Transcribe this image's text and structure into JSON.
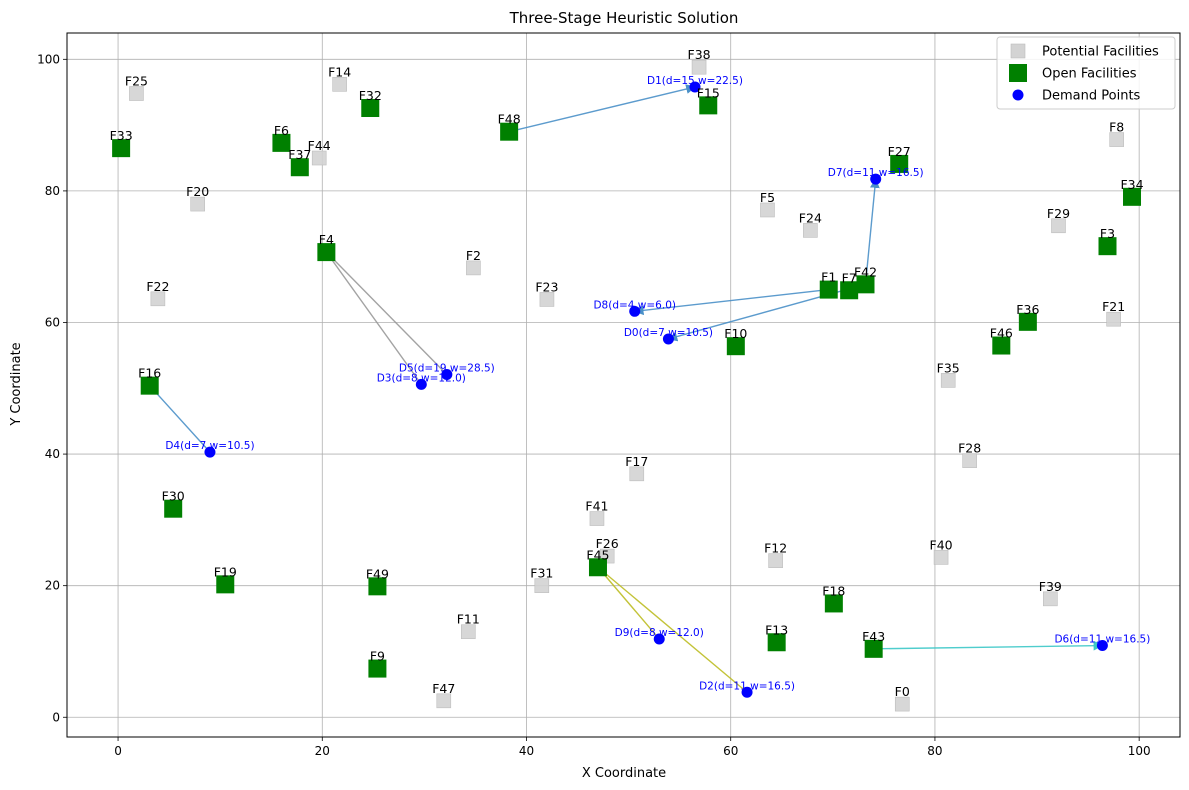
{
  "chart_data": {
    "type": "scatter",
    "title": "Three-Stage Heuristic Solution",
    "xlabel": "X Coordinate",
    "ylabel": "Y Coordinate",
    "xlim": [
      -5,
      104
    ],
    "ylim": [
      -3,
      104
    ],
    "xticks": [
      0,
      20,
      40,
      60,
      80,
      100
    ],
    "yticks": [
      0,
      20,
      40,
      60,
      80,
      100
    ],
    "grid": true,
    "legend_position": "top-right",
    "legend": [
      {
        "label": "Potential Facilities",
        "marker": "square-gray"
      },
      {
        "label": "Open Facilities",
        "marker": "square-green"
      },
      {
        "label": "Demand Points",
        "marker": "circle-blue"
      }
    ],
    "colors": {
      "potential": "#d3d3d3",
      "open": "#008000",
      "demand": "#0000ff",
      "demand_label": "#0000ff"
    },
    "potential_facilities": [
      {
        "label": "F0",
        "x": 76.8,
        "y": 2
      },
      {
        "label": "F2",
        "x": 34.8,
        "y": 68.3
      },
      {
        "label": "F5",
        "x": 63.6,
        "y": 77.1
      },
      {
        "label": "F8",
        "x": 97.8,
        "y": 87.8
      },
      {
        "label": "F11",
        "x": 34.3,
        "y": 13
      },
      {
        "label": "F12",
        "x": 64.4,
        "y": 23.8
      },
      {
        "label": "F14",
        "x": 21.7,
        "y": 96.2
      },
      {
        "label": "F17",
        "x": 50.8,
        "y": 37
      },
      {
        "label": "F20",
        "x": 7.8,
        "y": 78
      },
      {
        "label": "F21",
        "x": 97.5,
        "y": 60.5
      },
      {
        "label": "F22",
        "x": 3.9,
        "y": 63.6
      },
      {
        "label": "F23",
        "x": 42,
        "y": 63.5
      },
      {
        "label": "F24",
        "x": 67.8,
        "y": 74
      },
      {
        "label": "F25",
        "x": 1.8,
        "y": 94.8
      },
      {
        "label": "F26",
        "x": 47.9,
        "y": 24.5
      },
      {
        "label": "F28",
        "x": 83.4,
        "y": 39
      },
      {
        "label": "F29",
        "x": 92.1,
        "y": 74.7
      },
      {
        "label": "F31",
        "x": 41.5,
        "y": 20
      },
      {
        "label": "F35",
        "x": 81.3,
        "y": 51.2
      },
      {
        "label": "F38",
        "x": 56.9,
        "y": 98.8
      },
      {
        "label": "F39",
        "x": 91.3,
        "y": 18
      },
      {
        "label": "F40",
        "x": 80.6,
        "y": 24.3
      },
      {
        "label": "F41",
        "x": 46.9,
        "y": 30.2
      },
      {
        "label": "F44",
        "x": 19.7,
        "y": 85
      },
      {
        "label": "F47",
        "x": 31.9,
        "y": 2.5
      }
    ],
    "open_facilities": [
      {
        "label": "F1",
        "x": 69.6,
        "y": 65
      },
      {
        "label": "F3",
        "x": 96.9,
        "y": 71.6
      },
      {
        "label": "F4",
        "x": 20.4,
        "y": 70.7
      },
      {
        "label": "F6",
        "x": 16,
        "y": 87.3
      },
      {
        "label": "F7",
        "x": 71.6,
        "y": 64.9
      },
      {
        "label": "F9",
        "x": 25.4,
        "y": 7.4
      },
      {
        "label": "F10",
        "x": 60.5,
        "y": 56.4
      },
      {
        "label": "F13",
        "x": 64.5,
        "y": 11.4
      },
      {
        "label": "F15",
        "x": 57.8,
        "y": 93
      },
      {
        "label": "F16",
        "x": 3.1,
        "y": 50.4
      },
      {
        "label": "F18",
        "x": 70.1,
        "y": 17.3
      },
      {
        "label": "F19",
        "x": 10.5,
        "y": 20.2
      },
      {
        "label": "F27",
        "x": 76.5,
        "y": 84.1
      },
      {
        "label": "F30",
        "x": 5.4,
        "y": 31.7
      },
      {
        "label": "F32",
        "x": 24.7,
        "y": 92.6
      },
      {
        "label": "F33",
        "x": 0.3,
        "y": 86.5
      },
      {
        "label": "F34",
        "x": 99.3,
        "y": 79.1
      },
      {
        "label": "F36",
        "x": 89.1,
        "y": 60.1
      },
      {
        "label": "F37",
        "x": 17.8,
        "y": 83.6
      },
      {
        "label": "F42",
        "x": 73.2,
        "y": 65.8
      },
      {
        "label": "F43",
        "x": 74,
        "y": 10.4
      },
      {
        "label": "F45",
        "x": 47,
        "y": 22.8
      },
      {
        "label": "F46",
        "x": 86.5,
        "y": 56.5
      },
      {
        "label": "F48",
        "x": 38.3,
        "y": 89
      },
      {
        "label": "F49",
        "x": 25.4,
        "y": 19.9
      }
    ],
    "demand_points": [
      {
        "label": "D0(d=7,w=10.5)",
        "x": 53.9,
        "y": 57.5
      },
      {
        "label": "D1(d=15,w=22.5)",
        "x": 56.5,
        "y": 95.8
      },
      {
        "label": "D2(d=11,w=16.5)",
        "x": 61.6,
        "y": 3.8
      },
      {
        "label": "D3(d=8,w=12.0)",
        "x": 29.7,
        "y": 50.6
      },
      {
        "label": "D4(d=7,w=10.5)",
        "x": 9,
        "y": 40.3
      },
      {
        "label": "D5(d=19,w=28.5)",
        "x": 32.2,
        "y": 52.1
      },
      {
        "label": "D6(d=11,w=16.5)",
        "x": 96.4,
        "y": 10.9
      },
      {
        "label": "D7(d=11,w=16.5)",
        "x": 74.2,
        "y": 81.8
      },
      {
        "label": "D8(d=4,w=6.0)",
        "x": 50.6,
        "y": 61.7
      },
      {
        "label": "D9(d=8,w=12.0)",
        "x": 53,
        "y": 11.9
      }
    ],
    "assignments": [
      {
        "from": "F48",
        "to": "D1(d=15,w=22.5)",
        "color": "#4a90c8",
        "arrow": true
      },
      {
        "from": "F42",
        "to": "D7(d=11,w=16.5)",
        "color": "#4a90c8",
        "arrow": true
      },
      {
        "from": "F1",
        "to": "D8(d=4,w=6.0)",
        "color": "#4a90c8",
        "arrow": true
      },
      {
        "from": "F42",
        "to": "D0(d=7,w=10.5)",
        "color": "#4a90c8",
        "arrow": true
      },
      {
        "from": "F16",
        "to": "D4(d=7,w=10.5)",
        "color": "#4a90c8",
        "arrow": false
      },
      {
        "from": "F4",
        "to": "D5(d=19,w=28.5)",
        "color": "#999999",
        "arrow": false
      },
      {
        "from": "F4",
        "to": "D3(d=8,w=12.0)",
        "color": "#999999",
        "arrow": false
      },
      {
        "from": "F45",
        "to": "D2(d=11,w=16.5)",
        "color": "#bcbd22",
        "arrow": false
      },
      {
        "from": "F45",
        "to": "D9(d=8,w=12.0)",
        "color": "#bcbd22",
        "arrow": false
      },
      {
        "from": "F43",
        "to": "D6(d=11,w=16.5)",
        "color": "#3cc8c8",
        "arrow": true
      }
    ]
  }
}
